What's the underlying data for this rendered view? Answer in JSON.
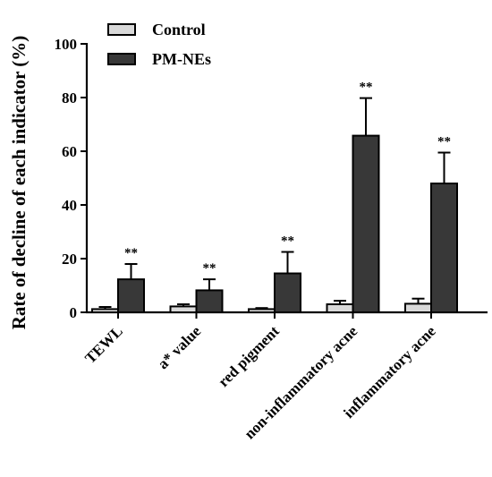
{
  "chart_data": {
    "type": "bar",
    "ylabel": "Rate of decline of each indicator (%)",
    "xlabel": "",
    "ylim": [
      0,
      100
    ],
    "yticks": [
      0,
      20,
      40,
      60,
      80,
      100
    ],
    "categories": [
      "TEWL",
      "a* value",
      "red pigment",
      "non-inflammatory acne",
      "inflammatory acne"
    ],
    "series": [
      {
        "name": "Control",
        "color": "#d9d9d9",
        "values": [
          1.2,
          2.2,
          1.2,
          3.0,
          3.2
        ],
        "errors": [
          0.8,
          0.8,
          0.4,
          1.3,
          1.9
        ],
        "annotations": [
          "",
          "",
          "",
          "",
          ""
        ]
      },
      {
        "name": "PM-NEs",
        "color": "#383838",
        "values": [
          12.3,
          8.2,
          14.5,
          65.8,
          48.0
        ],
        "errors": [
          5.7,
          4.1,
          8.0,
          14.0,
          11.5
        ],
        "annotations": [
          "**",
          "**",
          "**",
          "**",
          "**"
        ]
      }
    ],
    "legend_position": "top-left",
    "grid": false
  }
}
